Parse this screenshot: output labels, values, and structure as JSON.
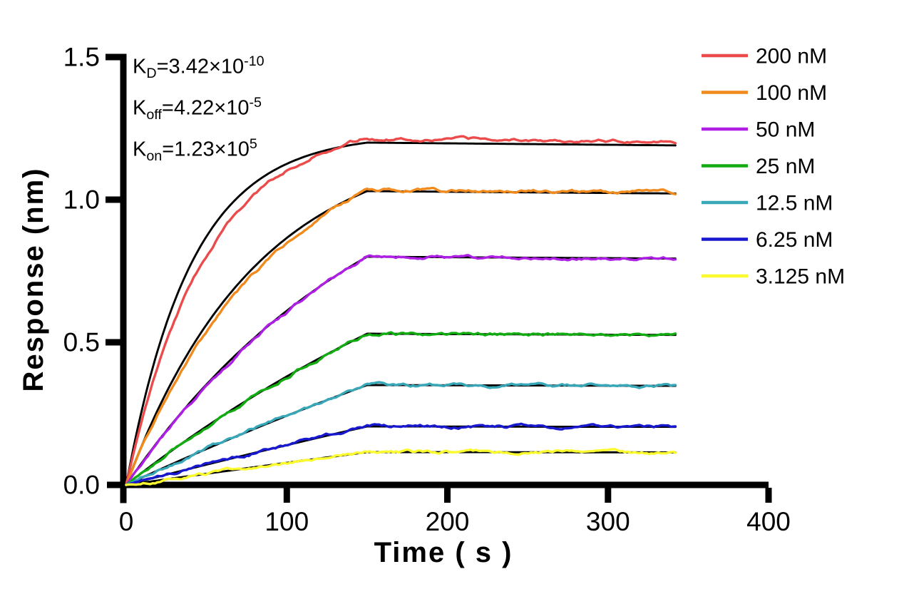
{
  "chart_data": {
    "type": "line",
    "title": "",
    "xlabel": "Time ( s )",
    "ylabel": "Response (nm)",
    "xlim": [
      0,
      400
    ],
    "ylim": [
      0,
      1.5
    ],
    "grid": false,
    "legend_position": "right",
    "x_tick_values": [
      0,
      100,
      200,
      300,
      400
    ],
    "x_tick_labels": [
      "0",
      "100",
      "200",
      "300",
      "400"
    ],
    "y_tick_values": [
      0,
      0.5,
      1.0,
      1.5
    ],
    "y_tick_labels": [
      "0.0",
      "0.5",
      "1.0",
      "1.5"
    ],
    "association_end_s": 150,
    "trace_end_s": 343,
    "koff_per_s": 4.22e-05,
    "kon_per_M_s": 123000,
    "KD_M": 3.42e-10,
    "fit_color": "#000000",
    "series": [
      {
        "label": "200 nM",
        "conc_nM": 200,
        "color": "#EB4B4B",
        "plateau_nm": 1.215,
        "fit_plateau_nm": 1.2,
        "kobs_fit": 0.0246,
        "kobs_data": 0.0198,
        "seed": 7
      },
      {
        "label": "100 nM",
        "conc_nM": 100,
        "color": "#F18A1C",
        "plateau_nm": 1.035,
        "fit_plateau_nm": 1.03,
        "kobs_fit": 0.0123,
        "kobs_data": 0.0105,
        "seed": 13
      },
      {
        "label": "50 nM",
        "conc_nM": 50,
        "color": "#AE1EE4",
        "plateau_nm": 0.8,
        "fit_plateau_nm": 0.8,
        "kobs_fit": 0.00619,
        "kobs_data": 0.0058,
        "seed": 21
      },
      {
        "label": "25 nM",
        "conc_nM": 25,
        "color": "#12AC12",
        "plateau_nm": 0.53,
        "fit_plateau_nm": 0.53,
        "kobs_fit": 0.00312,
        "kobs_data": 0.00312,
        "seed": 33
      },
      {
        "label": "12.5 nM",
        "conc_nM": 12.5,
        "color": "#38A7B8",
        "plateau_nm": 0.35,
        "fit_plateau_nm": 0.35,
        "kobs_fit": 0.00158,
        "kobs_data": 0.00158,
        "seed": 45
      },
      {
        "label": "6.25 nM",
        "conc_nM": 6.25,
        "color": "#1818CF",
        "plateau_nm": 0.206,
        "fit_plateau_nm": 0.205,
        "kobs_fit": 0.00081,
        "kobs_data": 0.00081,
        "seed": 57
      },
      {
        "label": "3.125 nM",
        "conc_nM": 3.125,
        "color": "#FAFA2E",
        "plateau_nm": 0.116,
        "fit_plateau_nm": 0.115,
        "kobs_fit": 0.00043,
        "kobs_data": 0.00043,
        "seed": 69
      }
    ]
  },
  "annotation": {
    "lines": [
      {
        "base": "K",
        "sub": "D",
        "body": "=3.42×10",
        "exp": "-10"
      },
      {
        "base": "K",
        "sub": "off",
        "body": "=4.22×10",
        "exp": "-5"
      },
      {
        "base": "K",
        "sub": "on",
        "body": "=1.23×10",
        "exp": "5"
      }
    ]
  }
}
